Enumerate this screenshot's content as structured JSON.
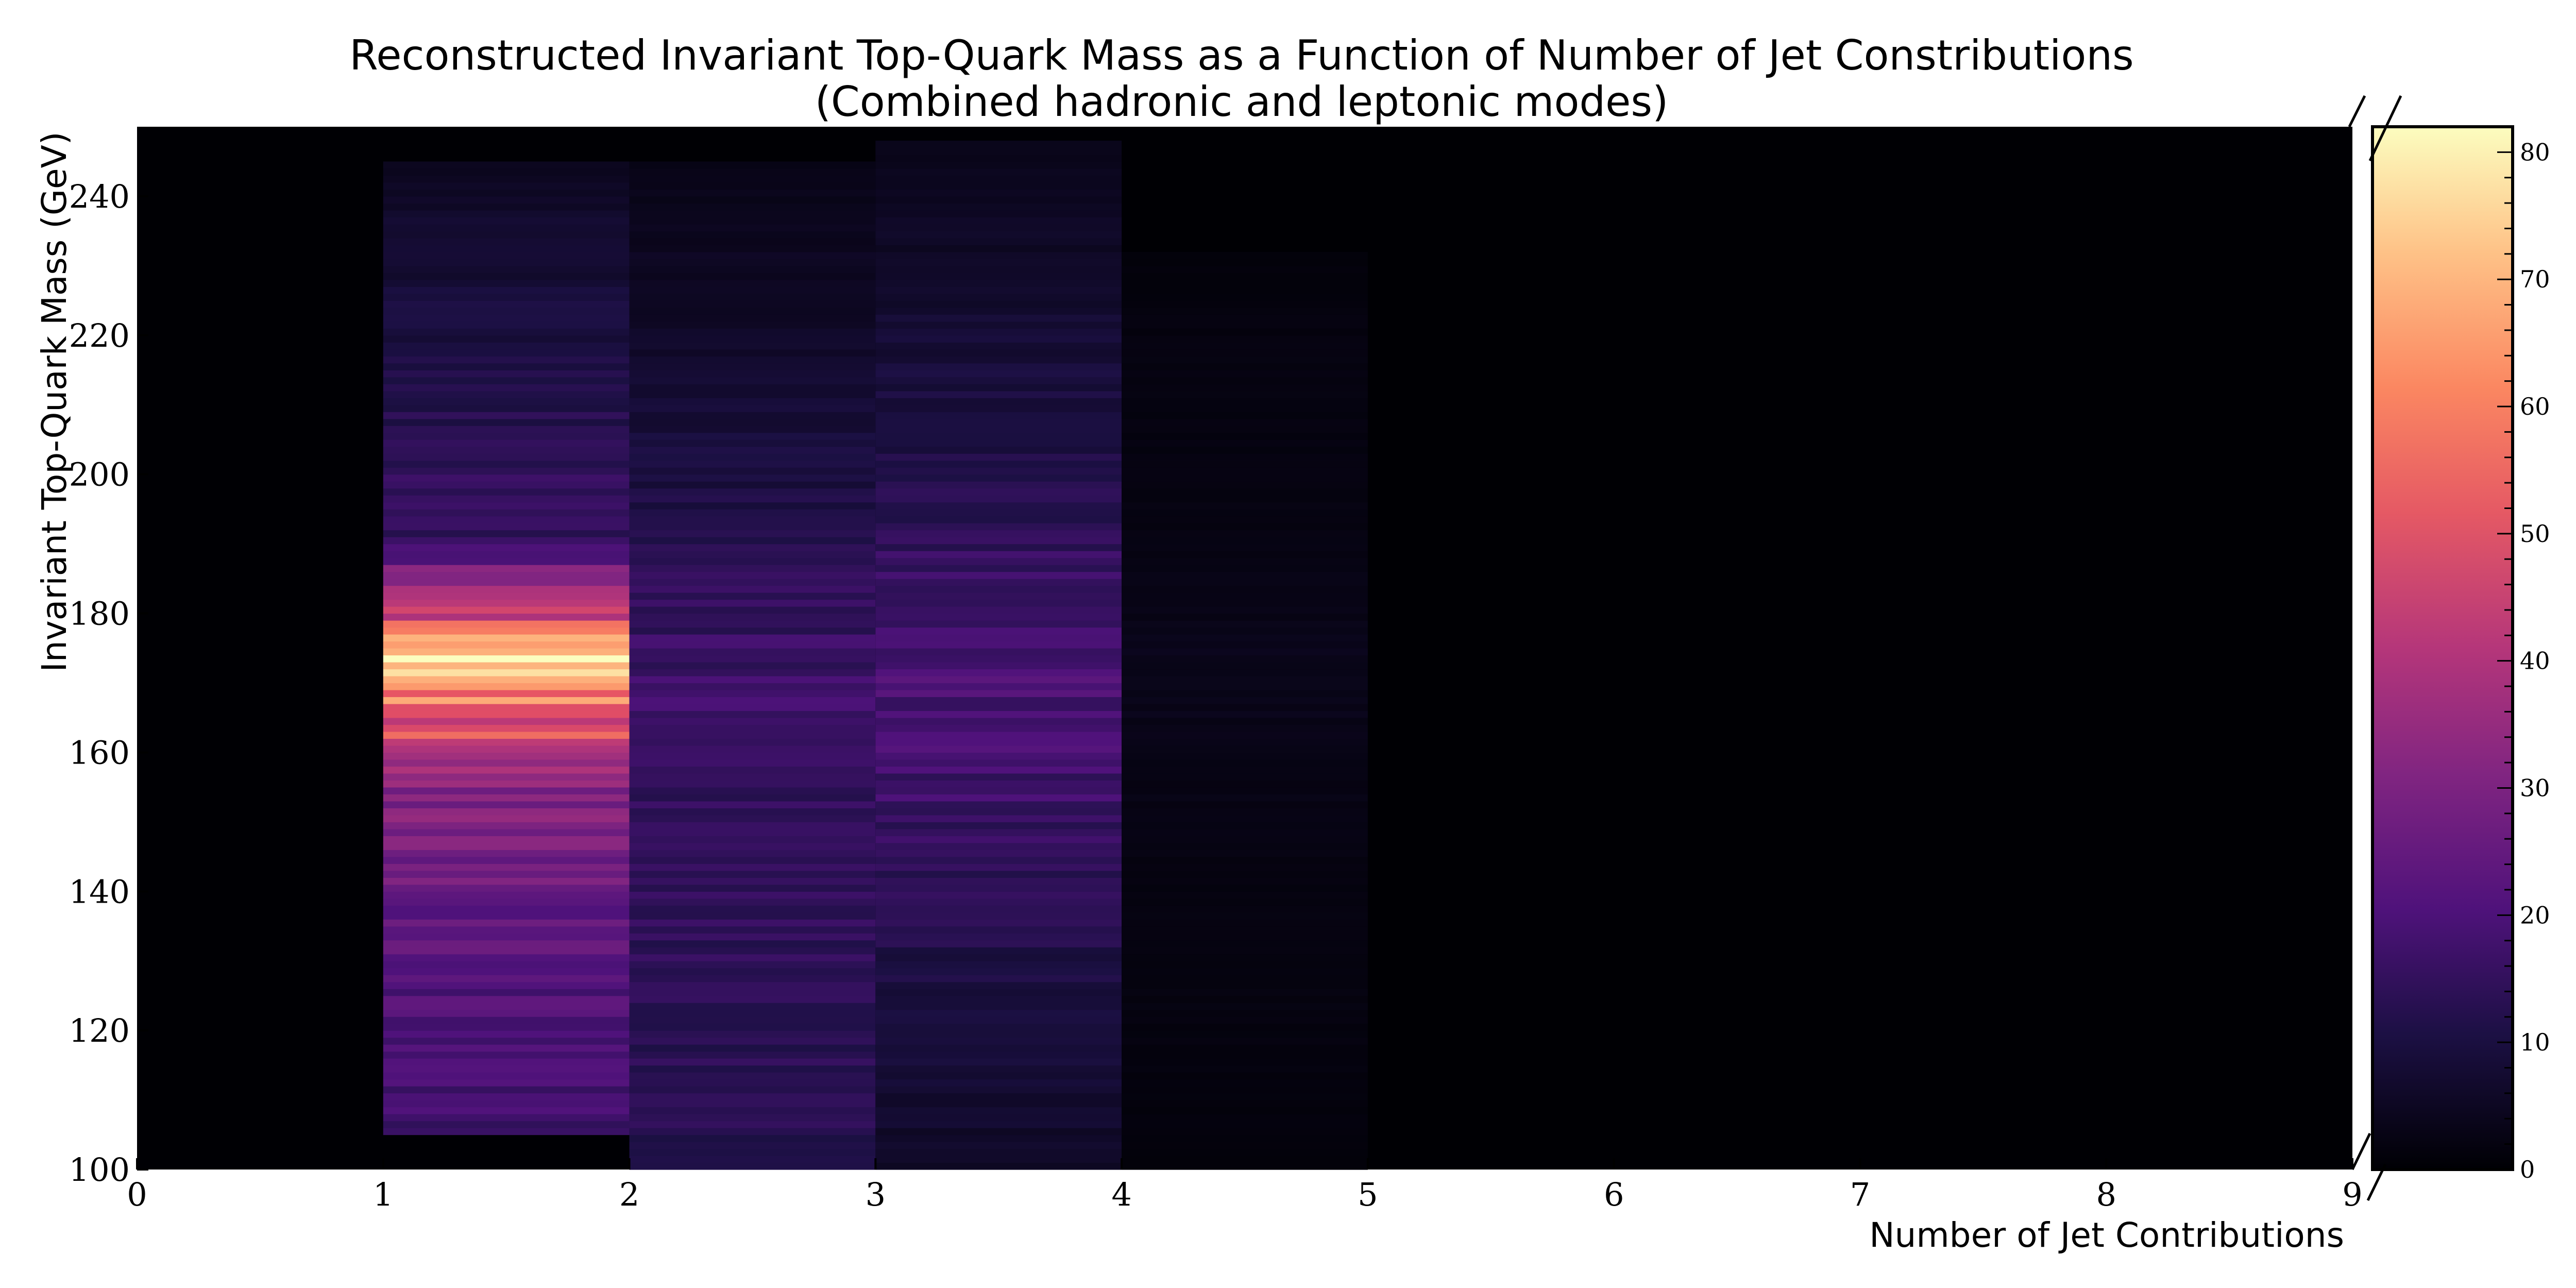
{
  "chart_data": {
    "type": "heatmap",
    "title": "Reconstructed Invariant Top-Quark Mass as a Function of Number of Jet Constributions",
    "subtitle": "(Combined hadronic and leptonic modes)",
    "xlabel": "Number of Jet Contributions",
    "ylabel": "Invariant Top-Quark Mass (GeV)",
    "xlim": [
      0,
      9
    ],
    "ylim": [
      100,
      250
    ],
    "x_ticks": [
      "0",
      "1",
      "2",
      "3",
      "4",
      "5",
      "6",
      "7",
      "8",
      "9"
    ],
    "y_ticks": [
      "100",
      "120",
      "140",
      "160",
      "180",
      "200",
      "220",
      "240"
    ],
    "colormap": "magma",
    "colorbar": {
      "min": 0,
      "max": 82,
      "ticks": [
        "0",
        "10",
        "20",
        "30",
        "40",
        "50",
        "60",
        "70",
        "80"
      ]
    },
    "bin_width_y": 1,
    "columns": [
      {
        "x_range": [
          1,
          2
        ],
        "y_range": [
          105,
          245
        ],
        "profile": [
          [
            105,
            15
          ],
          [
            110,
            18
          ],
          [
            120,
            20
          ],
          [
            130,
            22
          ],
          [
            140,
            25
          ],
          [
            150,
            30
          ],
          [
            155,
            33
          ],
          [
            160,
            40
          ],
          [
            165,
            55
          ],
          [
            168,
            65
          ],
          [
            170,
            74
          ],
          [
            172,
            82
          ],
          [
            174,
            72
          ],
          [
            176,
            62
          ],
          [
            178,
            55
          ],
          [
            180,
            48
          ],
          [
            183,
            38
          ],
          [
            186,
            30
          ],
          [
            188,
            20
          ],
          [
            190,
            16
          ],
          [
            200,
            14
          ],
          [
            210,
            12
          ],
          [
            220,
            10
          ],
          [
            230,
            8
          ],
          [
            240,
            6
          ],
          [
            245,
            4
          ]
        ]
      },
      {
        "x_range": [
          2,
          3
        ],
        "y_range": [
          100,
          245
        ],
        "profile": [
          [
            100,
            12
          ],
          [
            110,
            13
          ],
          [
            120,
            14
          ],
          [
            130,
            14
          ],
          [
            140,
            14
          ],
          [
            150,
            15
          ],
          [
            160,
            16
          ],
          [
            170,
            17
          ],
          [
            175,
            16
          ],
          [
            180,
            15
          ],
          [
            190,
            12
          ],
          [
            200,
            10
          ],
          [
            210,
            8
          ],
          [
            220,
            6
          ],
          [
            230,
            5
          ],
          [
            245,
            3
          ]
        ]
      },
      {
        "x_range": [
          3,
          4
        ],
        "y_range": [
          100,
          248
        ],
        "profile": [
          [
            100,
            6
          ],
          [
            110,
            7
          ],
          [
            120,
            9
          ],
          [
            130,
            11
          ],
          [
            140,
            13
          ],
          [
            150,
            16
          ],
          [
            160,
            18
          ],
          [
            165,
            19
          ],
          [
            170,
            20
          ],
          [
            180,
            18
          ],
          [
            190,
            15
          ],
          [
            200,
            12
          ],
          [
            210,
            10
          ],
          [
            220,
            8
          ],
          [
            230,
            6
          ],
          [
            240,
            5
          ],
          [
            248,
            3
          ]
        ]
      },
      {
        "x_range": [
          4,
          5
        ],
        "y_range": [
          100,
          232
        ],
        "profile": [
          [
            100,
            1
          ],
          [
            120,
            2
          ],
          [
            140,
            2
          ],
          [
            160,
            3
          ],
          [
            170,
            4
          ],
          [
            180,
            3
          ],
          [
            200,
            2
          ],
          [
            220,
            2
          ],
          [
            232,
            1
          ]
        ]
      }
    ]
  }
}
